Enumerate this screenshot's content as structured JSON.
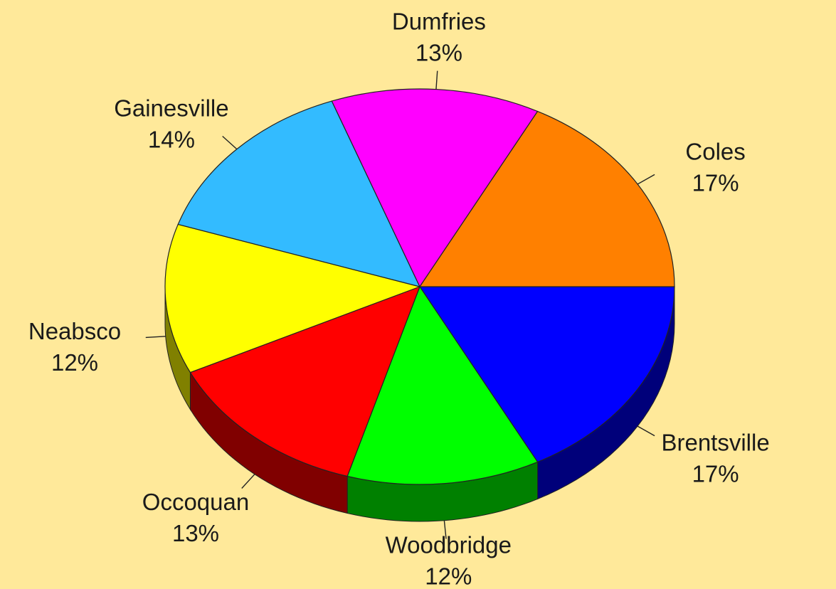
{
  "chart_data": {
    "type": "pie",
    "style": "3d",
    "background": "#FFE99A",
    "title": "",
    "slices": [
      {
        "label": "Brentsville",
        "value": 17,
        "value_label": "17%",
        "color": "#0000FF",
        "side_color": "#00007A"
      },
      {
        "label": "Woodbridge",
        "value": 12,
        "value_label": "12%",
        "color": "#00FF00",
        "side_color": "#008000"
      },
      {
        "label": "Occoquan",
        "value": 13,
        "value_label": "13%",
        "color": "#FF0000",
        "side_color": "#800000"
      },
      {
        "label": "Neabsco",
        "value": 12,
        "value_label": "12%",
        "color": "#FFFF00",
        "side_color": "#808000"
      },
      {
        "label": "Gainesville",
        "value": 14,
        "value_label": "14%",
        "color": "#33BBFF",
        "side_color": "#1A5E80"
      },
      {
        "label": "Dumfries",
        "value": 13,
        "value_label": "13%",
        "color": "#FF00FF",
        "side_color": "#800080"
      },
      {
        "label": "Coles",
        "value": 17,
        "value_label": "17%",
        "color": "#FF8000",
        "side_color": "#804000"
      }
    ]
  }
}
